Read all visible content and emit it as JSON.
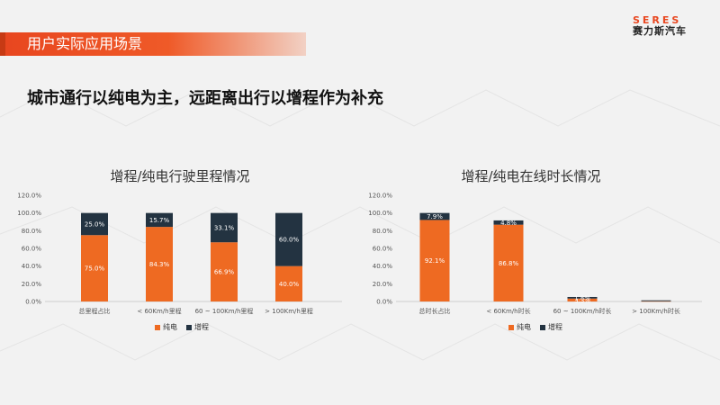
{
  "header": {
    "title": "用户实际应用场景"
  },
  "logo": {
    "word": "SERES",
    "cn": "赛力斯汽车"
  },
  "headline": "城市通行以纯电为主，远距离出行以增程作为补充",
  "colors": {
    "ev": "#ee6a22",
    "erev": "#233341",
    "accent": "#e8461f"
  },
  "chart_data": [
    {
      "type": "bar",
      "stacked": true,
      "title": "增程/纯电行驶里程情况",
      "categories": [
        "总里程占比",
        "< 60Km/h里程",
        "60 ~ 100Km/h里程",
        "> 100Km/h里程"
      ],
      "series": [
        {
          "name": "纯电",
          "values": [
            75.0,
            84.3,
            66.9,
            40.0
          ],
          "labels": [
            "75.0%",
            "84.3%",
            "66.9%",
            "40.0%"
          ]
        },
        {
          "name": "增程",
          "values": [
            25.0,
            15.7,
            33.1,
            60.0
          ],
          "labels": [
            "25.0%",
            "15.7%",
            "33.1%",
            "60.0%"
          ]
        }
      ],
      "ylim": [
        0,
        120
      ],
      "yticks": [
        "0.0%",
        "20.0%",
        "40.0%",
        "60.0%",
        "80.0%",
        "100.0%",
        "120.0%"
      ],
      "legend": "bottom"
    },
    {
      "type": "bar",
      "stacked": true,
      "title": "增程/纯电在线时长情况",
      "categories": [
        "总时长占比",
        "< 60Km/h时长",
        "60 ~ 100Km/h时长",
        "> 100Km/h时长"
      ],
      "series": [
        {
          "name": "纯电",
          "values": [
            92.1,
            86.8,
            3.3,
            0.3
          ],
          "labels": [
            "92.1%",
            "86.8%",
            "3.3%",
            ""
          ]
        },
        {
          "name": "增程",
          "values": [
            7.9,
            4.8,
            1.8,
            1.0
          ],
          "labels": [
            "7.9%",
            "4.8%",
            "1.8%",
            ""
          ]
        }
      ],
      "ylim": [
        0,
        120
      ],
      "yticks": [
        "0.0%",
        "20.0%",
        "40.0%",
        "60.0%",
        "80.0%",
        "100.0%",
        "120.0%"
      ],
      "legend": "bottom"
    }
  ]
}
